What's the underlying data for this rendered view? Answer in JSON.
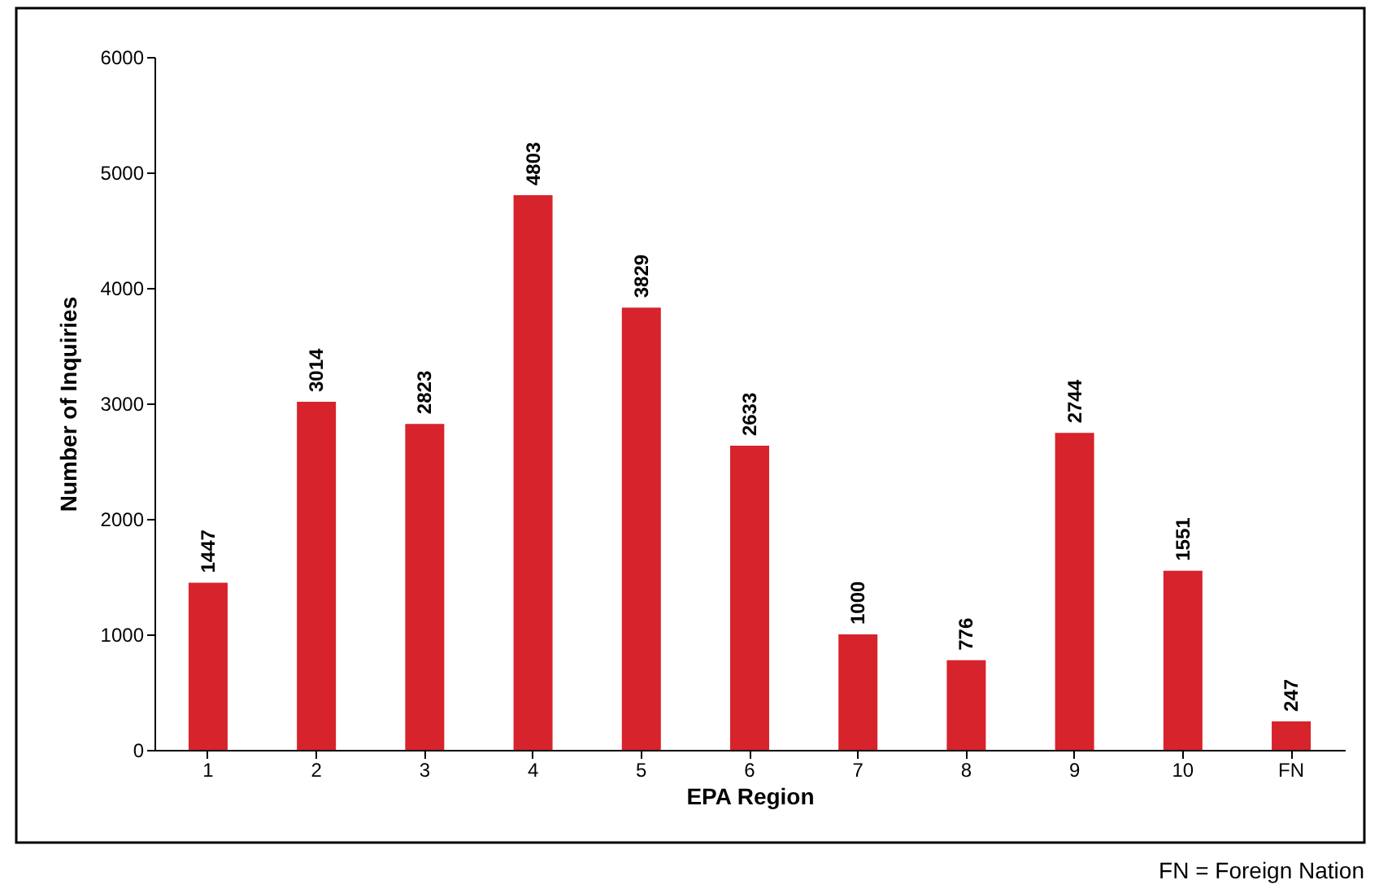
{
  "chart_data": {
    "type": "bar",
    "xlabel": "EPA Region",
    "ylabel": "Number of Inquiries",
    "categories": [
      "1",
      "2",
      "3",
      "4",
      "5",
      "6",
      "7",
      "8",
      "9",
      "10",
      "FN"
    ],
    "values": [
      1447,
      3014,
      2823,
      4803,
      3829,
      2633,
      1000,
      776,
      2744,
      1551,
      247
    ],
    "color": "#d7232b",
    "ylim": [
      0,
      6000
    ],
    "yticks": [
      0,
      1000,
      2000,
      3000,
      4000,
      5000,
      6000
    ],
    "grid": false,
    "data_labels": true,
    "annotations": [
      "FN = Foreign Nation"
    ]
  }
}
